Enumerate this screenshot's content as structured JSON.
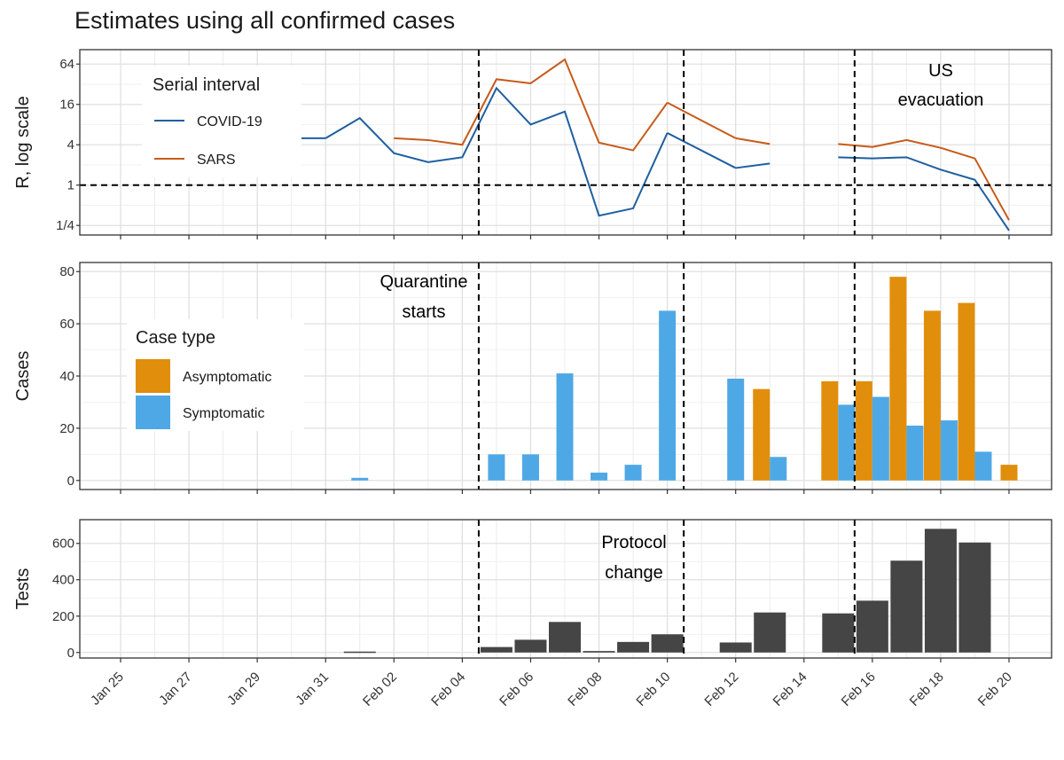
{
  "title": "Estimates using all confirmed cases",
  "chart_data": [
    {
      "type": "line",
      "name": "r-panel",
      "ylabel": "R, log scale",
      "yscale": "log2",
      "ylim": [
        0.18,
        105
      ],
      "yticks": [
        {
          "value": 0.25,
          "label": "1/4"
        },
        {
          "value": 1,
          "label": "1"
        },
        {
          "value": 4,
          "label": "4"
        },
        {
          "value": 16,
          "label": "16"
        },
        {
          "value": 64,
          "label": "64"
        }
      ],
      "hline": 1,
      "legend": {
        "title": "Serial interval",
        "position": "top-left"
      },
      "series": [
        {
          "name": "COVID-19",
          "color": "#1f5fa0",
          "x": [
            "Jan 31",
            "Feb 01",
            "Feb 02",
            "Feb 03",
            "Feb 04",
            "Feb 05",
            "Feb 06",
            "Feb 07",
            "Feb 08",
            "Feb 09",
            "Feb 10",
            "Feb 12",
            "Feb 13",
            "Feb 15",
            "Feb 16",
            "Feb 17",
            "Feb 18",
            "Feb 19",
            "Feb 20"
          ],
          "values": [
            5,
            10,
            3,
            2.2,
            2.6,
            28,
            8,
            12.5,
            0.35,
            0.45,
            6,
            1.8,
            2.1,
            2.6,
            2.5,
            2.6,
            1.7,
            1.2,
            0.21
          ]
        },
        {
          "name": "SARS",
          "color": "#c85a1a",
          "x": [
            "Feb 02",
            "Feb 03",
            "Feb 04",
            "Feb 05",
            "Feb 06",
            "Feb 07",
            "Feb 08",
            "Feb 09",
            "Feb 10",
            "Feb 12",
            "Feb 13",
            "Feb 15",
            "Feb 16",
            "Feb 17",
            "Feb 18",
            "Feb 19",
            "Feb 20"
          ],
          "values": [
            5,
            4.7,
            4,
            38,
            33,
            75,
            4.3,
            3.3,
            17,
            5,
            4.1,
            4.1,
            3.7,
            4.7,
            3.6,
            2.5,
            0.3
          ]
        }
      ],
      "segments": [
        {
          "x": [
            "Jan 29",
            "Jan 31"
          ],
          "values": [
            5,
            5
          ],
          "color": "#1f5fa0"
        },
        {
          "x": [
            "Feb 10",
            "Feb 12"
          ],
          "values": [
            6,
            1.8
          ],
          "color": "#1f5fa0"
        },
        {
          "x": [
            "Feb 10",
            "Feb 12"
          ],
          "values": [
            17,
            5
          ],
          "color": "#c85a1a"
        }
      ],
      "annotations": [
        {
          "text": "US evacuation",
          "lines": [
            "US",
            "evacuation"
          ]
        }
      ]
    },
    {
      "type": "bar",
      "name": "cases-panel",
      "ylabel": "Cases",
      "ylim": [
        0,
        80
      ],
      "yticks": [
        0,
        20,
        40,
        60,
        80
      ],
      "legend": {
        "title": "Case type",
        "position": "center-left"
      },
      "series": [
        {
          "name": "Asymptomatic",
          "color": "#e08e0b",
          "x": [
            "Feb 13",
            "Feb 15",
            "Feb 16",
            "Feb 17",
            "Feb 18",
            "Feb 19",
            "Feb 20"
          ],
          "values": [
            35,
            38,
            38,
            78,
            65,
            68,
            6
          ]
        },
        {
          "name": "Symptomatic",
          "color": "#4fa8e6",
          "x": [
            "Feb 01",
            "Feb 05",
            "Feb 06",
            "Feb 07",
            "Feb 08",
            "Feb 09",
            "Feb 10",
            "Feb 12",
            "Feb 13",
            "Feb 15",
            "Feb 16",
            "Feb 17",
            "Feb 18",
            "Feb 19"
          ],
          "values": [
            1,
            10,
            10,
            41,
            3,
            6,
            65,
            39,
            9,
            29,
            32,
            21,
            23,
            11
          ]
        }
      ],
      "annotations": [
        {
          "text": "Quarantine starts",
          "lines": [
            "Quarantine",
            "starts"
          ]
        }
      ]
    },
    {
      "type": "bar",
      "name": "tests-panel",
      "ylabel": "Tests",
      "ylim": [
        0,
        700
      ],
      "yticks": [
        0,
        200,
        400,
        600
      ],
      "series": [
        {
          "name": "Tests",
          "color": "#454545",
          "x": [
            "Feb 01",
            "Feb 05",
            "Feb 06",
            "Feb 07",
            "Feb 08",
            "Feb 09",
            "Feb 10",
            "Feb 12",
            "Feb 13",
            "Feb 15",
            "Feb 16",
            "Feb 17",
            "Feb 18",
            "Feb 19"
          ],
          "values": [
            5,
            30,
            70,
            168,
            8,
            58,
            100,
            55,
            220,
            215,
            285,
            505,
            680,
            605
          ]
        }
      ],
      "annotations": [
        {
          "text": "Protocol change",
          "lines": [
            "Protocol",
            "change"
          ]
        }
      ]
    }
  ],
  "x_axis": {
    "dates": [
      "Jan 25",
      "Jan 26",
      "Jan 27",
      "Jan 28",
      "Jan 29",
      "Jan 30",
      "Jan 31",
      "Feb 01",
      "Feb 02",
      "Feb 03",
      "Feb 04",
      "Feb 05",
      "Feb 06",
      "Feb 07",
      "Feb 08",
      "Feb 09",
      "Feb 10",
      "Feb 11",
      "Feb 12",
      "Feb 13",
      "Feb 14",
      "Feb 15",
      "Feb 16",
      "Feb 17",
      "Feb 18",
      "Feb 19",
      "Feb 20"
    ],
    "tick_labels": [
      "Jan 25",
      "Jan 27",
      "Jan 29",
      "Jan 31",
      "Feb 02",
      "Feb 04",
      "Feb 06",
      "Feb 08",
      "Feb 10",
      "Feb 12",
      "Feb 14",
      "Feb 16",
      "Feb 18",
      "Feb 20"
    ],
    "vlines": [
      "Feb 05",
      "Feb 11",
      "Feb 16"
    ]
  }
}
